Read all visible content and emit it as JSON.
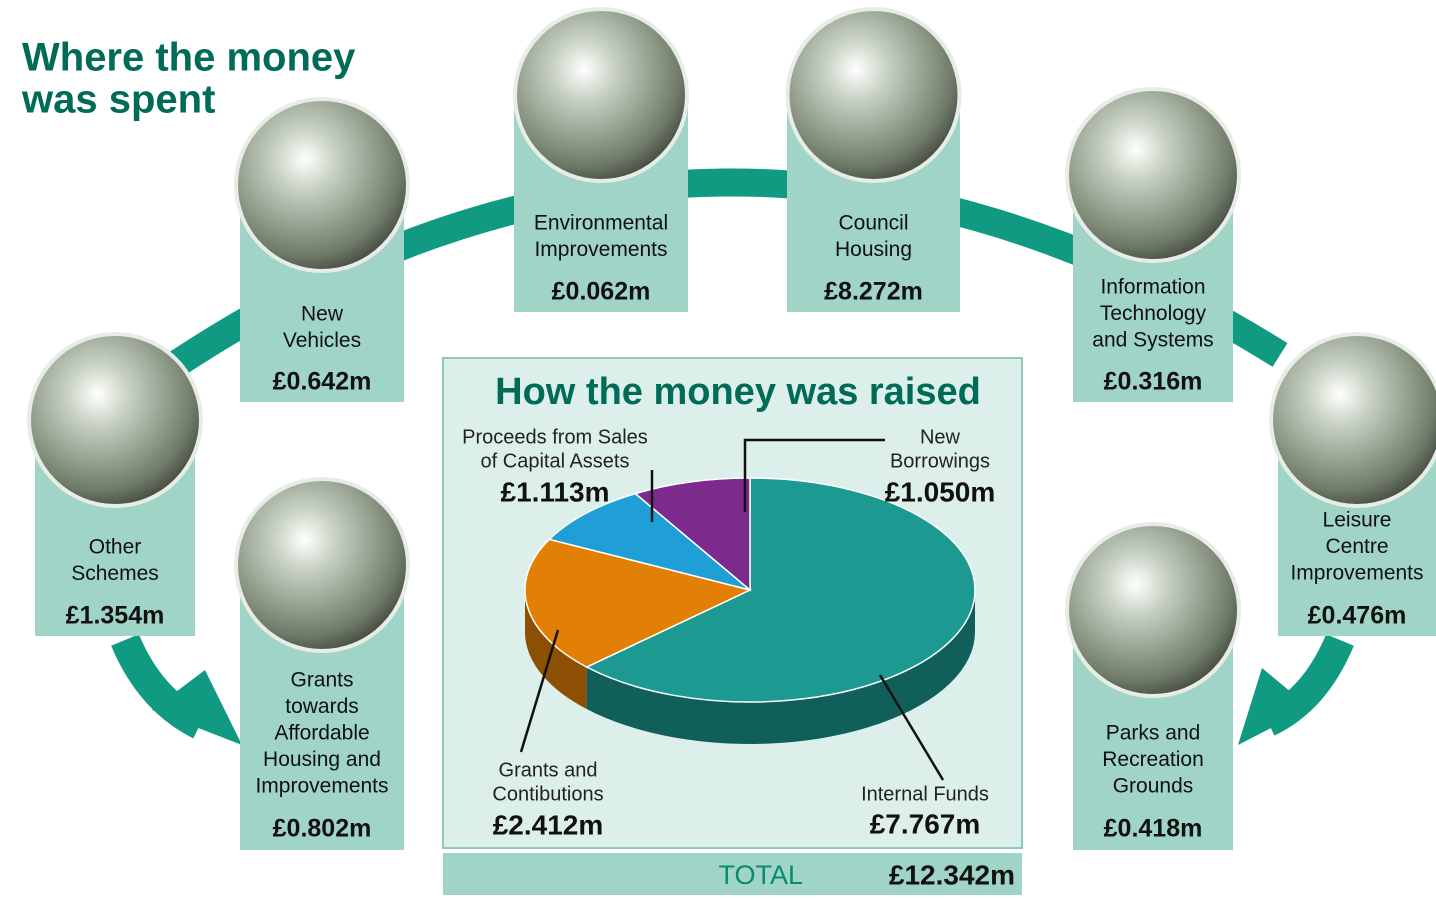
{
  "title": [
    "Where the money",
    "was spent"
  ],
  "spending": [
    {
      "lines": [
        "New",
        "Vehicles"
      ],
      "amount": "£0.642m"
    },
    {
      "lines": [
        "Environmental",
        "Improvements"
      ],
      "amount": "£0.062m"
    },
    {
      "lines": [
        "Council",
        "Housing"
      ],
      "amount": "£8.272m"
    },
    {
      "lines": [
        "Information",
        "Technology",
        "and Systems"
      ],
      "amount": "£0.316m"
    },
    {
      "lines": [
        "Other",
        "Schemes"
      ],
      "amount": "£1.354m"
    },
    {
      "lines": [
        "Leisure",
        "Centre",
        "Improvements"
      ],
      "amount": "£0.476m"
    },
    {
      "lines": [
        "Grants",
        "towards",
        "Affordable",
        "Housing and",
        "Improvements"
      ],
      "amount": "£0.802m"
    },
    {
      "lines": [
        "Parks and",
        "Recreation",
        "Grounds"
      ],
      "amount": "£0.418m"
    }
  ],
  "chart_data": {
    "type": "pie",
    "title": "How the money was raised",
    "categories": [
      [
        "Internal Funds"
      ],
      [
        "Grants and",
        "Contibutions"
      ],
      [
        "Proceeds from Sales",
        "of Capital Assets"
      ],
      [
        "New",
        "Borrowings"
      ]
    ],
    "values": [
      7.767,
      2.412,
      1.113,
      1.05
    ],
    "value_labels": [
      "£7.767m",
      "£2.412m",
      "£1.113m",
      "£1.050m"
    ],
    "colors": [
      "#1c9a92",
      "#e27f05",
      "#1f9fd6",
      "#7c2a8c"
    ]
  },
  "total": {
    "label": "TOTAL",
    "amount": "£12.342m"
  }
}
